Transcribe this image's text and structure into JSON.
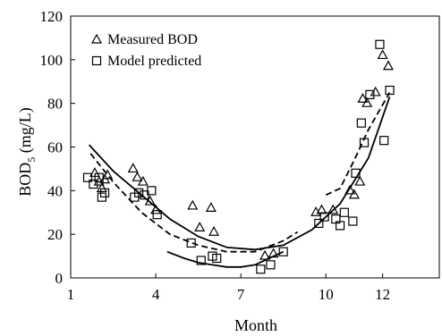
{
  "chart_data": {
    "type": "scatter",
    "title": "",
    "xlabel": "Month",
    "ylabel": "BOD5 (mg/L)",
    "ylabel_parts": {
      "main": "BOD",
      "sub": "5",
      "tail": " (mg/L)"
    },
    "xlim": [
      1,
      14
    ],
    "ylim": [
      0,
      120
    ],
    "x_ticks": [
      1,
      4,
      7,
      10,
      12
    ],
    "y_ticks": [
      0,
      20,
      40,
      60,
      80,
      100,
      120
    ],
    "grid": false,
    "legend_position": "top-left",
    "series": [
      {
        "name": "Measured BOD",
        "marker": "triangle-open",
        "points": [
          [
            1.85,
            48
          ],
          [
            2.0,
            44
          ],
          [
            2.1,
            41
          ],
          [
            2.2,
            45
          ],
          [
            2.3,
            47
          ],
          [
            3.2,
            50
          ],
          [
            3.35,
            46
          ],
          [
            3.55,
            44
          ],
          [
            3.8,
            35
          ],
          [
            4.0,
            31
          ],
          [
            5.3,
            33
          ],
          [
            5.55,
            23
          ],
          [
            5.95,
            32
          ],
          [
            6.05,
            21
          ],
          [
            7.85,
            10
          ],
          [
            8.15,
            11
          ],
          [
            9.65,
            30
          ],
          [
            9.85,
            31
          ],
          [
            10.25,
            31
          ],
          [
            10.85,
            40
          ],
          [
            11.0,
            38
          ],
          [
            11.2,
            44
          ],
          [
            11.3,
            82
          ],
          [
            11.45,
            80
          ],
          [
            11.75,
            85
          ],
          [
            12.0,
            102
          ],
          [
            12.2,
            97
          ]
        ]
      },
      {
        "name": "Model predicted",
        "marker": "square-open",
        "points": [
          [
            1.6,
            46
          ],
          [
            1.8,
            43
          ],
          [
            2.0,
            46
          ],
          [
            2.1,
            37
          ],
          [
            2.2,
            39
          ],
          [
            3.25,
            37
          ],
          [
            3.4,
            39
          ],
          [
            3.6,
            38
          ],
          [
            3.85,
            40
          ],
          [
            4.05,
            29
          ],
          [
            5.25,
            16
          ],
          [
            5.6,
            8
          ],
          [
            6.0,
            10
          ],
          [
            6.15,
            9
          ],
          [
            7.7,
            4
          ],
          [
            8.05,
            6
          ],
          [
            8.5,
            12
          ],
          [
            9.75,
            25
          ],
          [
            9.95,
            28
          ],
          [
            10.35,
            27
          ],
          [
            10.5,
            24
          ],
          [
            10.65,
            30
          ],
          [
            10.95,
            26
          ],
          [
            11.05,
            48
          ],
          [
            11.25,
            71
          ],
          [
            11.35,
            62
          ],
          [
            11.55,
            84
          ],
          [
            11.9,
            107
          ],
          [
            12.05,
            63
          ],
          [
            12.25,
            86
          ]
        ]
      }
    ],
    "trend_lines": [
      {
        "style": "solid",
        "points": [
          [
            1.65,
            61
          ],
          [
            2.5,
            49
          ],
          [
            3.5,
            38
          ],
          [
            4.5,
            27
          ],
          [
            5.5,
            19
          ],
          [
            6.5,
            14
          ],
          [
            7.5,
            13
          ],
          [
            8.5,
            15
          ],
          [
            9.5,
            22
          ],
          [
            10.5,
            34
          ],
          [
            11.5,
            55
          ],
          [
            12.25,
            83
          ]
        ]
      },
      {
        "style": "solid",
        "points": [
          [
            4.4,
            12
          ],
          [
            5.0,
            9
          ],
          [
            5.5,
            7
          ],
          [
            6.0,
            6
          ],
          [
            6.5,
            5
          ],
          [
            7.0,
            5
          ],
          [
            7.5,
            6
          ],
          [
            8.0,
            9
          ],
          [
            8.5,
            12
          ]
        ]
      },
      {
        "style": "dashed",
        "points": [
          [
            1.7,
            57
          ],
          [
            2.5,
            44
          ],
          [
            3.5,
            30
          ],
          [
            4.5,
            20
          ],
          [
            5.5,
            15
          ],
          [
            6.5,
            12
          ],
          [
            7.5,
            12
          ],
          [
            8.5,
            17
          ],
          [
            9.0,
            21
          ]
        ]
      },
      {
        "style": "dashed",
        "points": [
          [
            10.0,
            38
          ],
          [
            10.5,
            41
          ],
          [
            11.0,
            54
          ],
          [
            11.5,
            68
          ],
          [
            12.25,
            85
          ]
        ]
      }
    ]
  }
}
